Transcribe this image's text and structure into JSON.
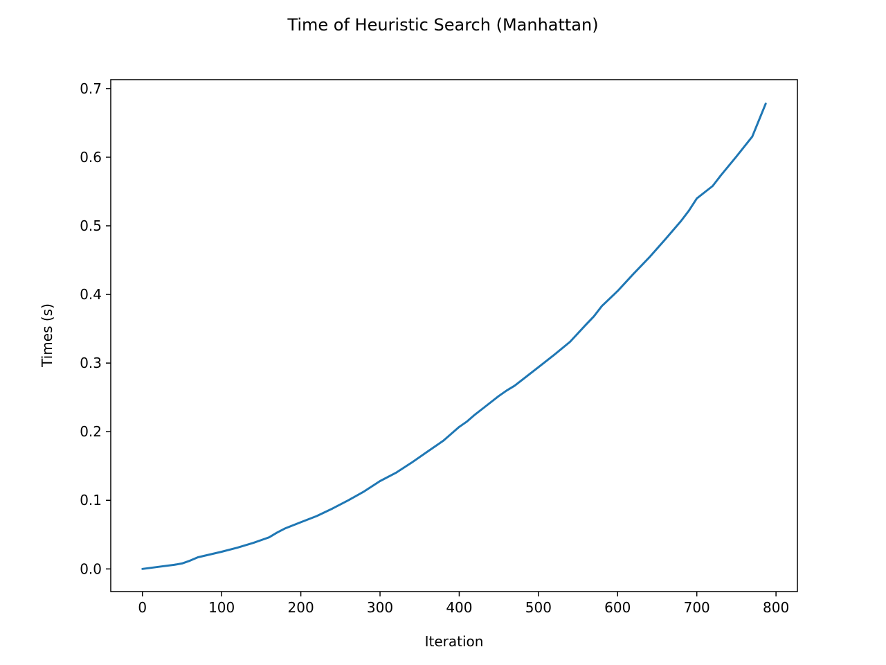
{
  "chart_data": {
    "type": "line",
    "title": "Time of Heuristic Search (Manhattan)",
    "xlabel": "Iteration",
    "ylabel": "Times (s)",
    "xlim": [
      -40,
      827
    ],
    "ylim": [
      -0.033,
      0.713
    ],
    "xticks": [
      0,
      100,
      200,
      300,
      400,
      500,
      600,
      700,
      800
    ],
    "xtick_labels": [
      "0",
      "100",
      "200",
      "300",
      "400",
      "500",
      "600",
      "700",
      "800"
    ],
    "yticks": [
      0.0,
      0.1,
      0.2,
      0.3,
      0.4,
      0.5,
      0.6,
      0.7
    ],
    "ytick_labels": [
      "0.0",
      "0.1",
      "0.2",
      "0.3",
      "0.4",
      "0.5",
      "0.6",
      "0.7"
    ],
    "grid": false,
    "series": [
      {
        "color": "#1f77b4",
        "x": [
          0,
          20,
          40,
          50,
          60,
          70,
          100,
          120,
          140,
          160,
          170,
          180,
          200,
          220,
          240,
          260,
          280,
          300,
          320,
          340,
          360,
          380,
          400,
          410,
          420,
          430,
          450,
          460,
          470,
          500,
          520,
          540,
          560,
          570,
          580,
          600,
          620,
          640,
          660,
          680,
          690,
          700,
          720,
          730,
          750,
          770,
          787
        ],
        "y": [
          0.0,
          0.003,
          0.006,
          0.008,
          0.012,
          0.017,
          0.025,
          0.031,
          0.038,
          0.046,
          0.053,
          0.059,
          0.068,
          0.077,
          0.088,
          0.1,
          0.113,
          0.128,
          0.14,
          0.155,
          0.171,
          0.187,
          0.207,
          0.215,
          0.225,
          0.234,
          0.252,
          0.26,
          0.267,
          0.294,
          0.312,
          0.331,
          0.356,
          0.368,
          0.383,
          0.405,
          0.43,
          0.454,
          0.48,
          0.507,
          0.522,
          0.54,
          0.558,
          0.573,
          0.601,
          0.63,
          0.678
        ]
      }
    ]
  }
}
